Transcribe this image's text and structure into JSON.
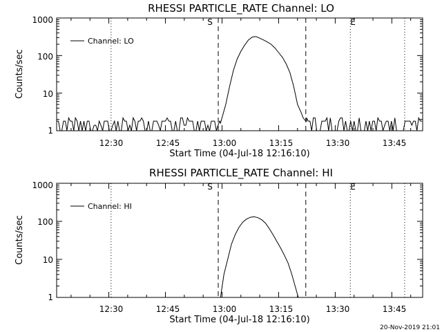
{
  "stamp": "20-Nov-2019 21:01",
  "chart_data": [
    {
      "type": "line",
      "title": "RHESSI PARTICLE_RATE Channel: LO",
      "xlabel": "Start Time (04-Jul-18 12:16:10)",
      "ylabel": "Counts/sec",
      "y_scale": "log",
      "ylim": [
        1,
        1000
      ],
      "y_ticks": [
        "1",
        "10",
        "100",
        "1000"
      ],
      "x_ticks": [
        "12:30",
        "12:45",
        "13:00",
        "13:15",
        "13:30",
        "13:45"
      ],
      "x_tick_minutes": [
        30,
        45,
        60,
        75,
        90,
        105
      ],
      "xlim_minutes": [
        16.17,
        113.17
      ],
      "markers": [
        {
          "label": "S",
          "minute": 59,
          "style": "dashed"
        },
        {
          "label": "E",
          "minute": 94,
          "style": "dotted"
        }
      ],
      "vlines": [
        {
          "minute": 30.6,
          "style": "dotted"
        },
        {
          "minute": 59,
          "style": "dashed"
        },
        {
          "minute": 82.2,
          "style": "dashed"
        },
        {
          "minute": 94,
          "style": "dotted"
        },
        {
          "minute": 108.4,
          "style": "dotted"
        }
      ],
      "legend_position": "top-left",
      "series": [
        {
          "name": "Channel: LO",
          "noise": [
            {
              "from": 16.2,
              "to": 59.6
            },
            {
              "from": 82.4,
              "to": 113.1
            }
          ],
          "x": [
            59.6,
            61,
            62,
            63,
            64,
            65,
            66,
            67,
            68,
            69,
            70,
            71,
            72,
            73,
            74,
            75,
            76,
            77,
            78,
            79,
            80,
            81,
            81.5,
            82,
            82.4
          ],
          "y": [
            1.6,
            5,
            15,
            40,
            80,
            130,
            190,
            260,
            310,
            320,
            290,
            260,
            230,
            200,
            160,
            120,
            90,
            60,
            35,
            15,
            5,
            3,
            2.2,
            1.9,
            1.8
          ]
        }
      ]
    },
    {
      "type": "line",
      "title": "RHESSI PARTICLE_RATE Channel: HI",
      "xlabel": "Start Time (04-Jul-18 12:16:10)",
      "ylabel": "Counts/sec",
      "y_scale": "log",
      "ylim": [
        1,
        1000
      ],
      "y_ticks": [
        "1",
        "10",
        "100",
        "1000"
      ],
      "x_ticks": [
        "12:30",
        "12:45",
        "13:00",
        "13:15",
        "13:30",
        "13:45"
      ],
      "x_tick_minutes": [
        30,
        45,
        60,
        75,
        90,
        105
      ],
      "xlim_minutes": [
        16.17,
        113.17
      ],
      "markers": [
        {
          "label": "S",
          "minute": 59,
          "style": "dashed"
        },
        {
          "label": "E",
          "minute": 94,
          "style": "dotted"
        }
      ],
      "vlines": [
        {
          "minute": 30.6,
          "style": "dotted"
        },
        {
          "minute": 59,
          "style": "dashed"
        },
        {
          "minute": 82.2,
          "style": "dashed"
        },
        {
          "minute": 94,
          "style": "dotted"
        },
        {
          "minute": 108.4,
          "style": "dotted"
        }
      ],
      "legend_position": "top-left",
      "series": [
        {
          "name": "Channel: HI",
          "noise": [],
          "x": [
            59.6,
            60.5,
            61.5,
            62.5,
            63.5,
            64.5,
            65.5,
            66.5,
            67.5,
            68.5,
            69.5,
            70.5,
            71.5,
            72.5,
            73.5,
            74.5,
            75.5,
            76.5,
            77.5,
            78.5,
            79.5,
            80.2
          ],
          "y": [
            1,
            4,
            10,
            25,
            45,
            70,
            95,
            115,
            128,
            132,
            125,
            110,
            90,
            65,
            45,
            30,
            20,
            13,
            8,
            4,
            1.8,
            1
          ]
        }
      ]
    }
  ]
}
